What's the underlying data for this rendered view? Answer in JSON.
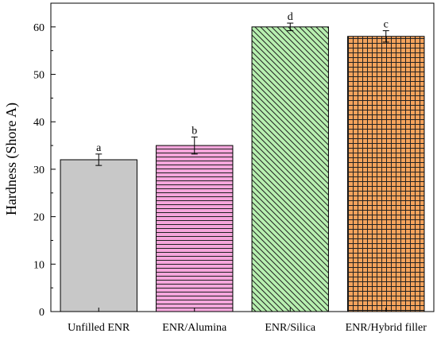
{
  "chart_data": {
    "type": "bar",
    "categories": [
      "Unfilled ENR",
      "ENR/Alumina",
      "ENR/Silica",
      "ENR/Hybrid filler"
    ],
    "values": [
      32,
      35,
      60,
      58
    ],
    "errors": [
      1.2,
      1.8,
      0.8,
      1.2
    ],
    "significance_labels": [
      "a",
      "b",
      "d",
      "c"
    ],
    "ylabel": "Hardness (Shore A)",
    "xlabel": "",
    "ylim": [
      0,
      65
    ],
    "yticks": [
      0,
      10,
      20,
      30,
      40,
      50,
      60
    ],
    "grid": false,
    "legend": "none",
    "bar_colors": [
      "#c8c8c8",
      "#f6a6dc",
      "#b8f0b0",
      "#f5a35c"
    ],
    "bar_patterns": [
      "solid",
      "horizontal-lines",
      "diagonal-lines",
      "grid"
    ]
  }
}
